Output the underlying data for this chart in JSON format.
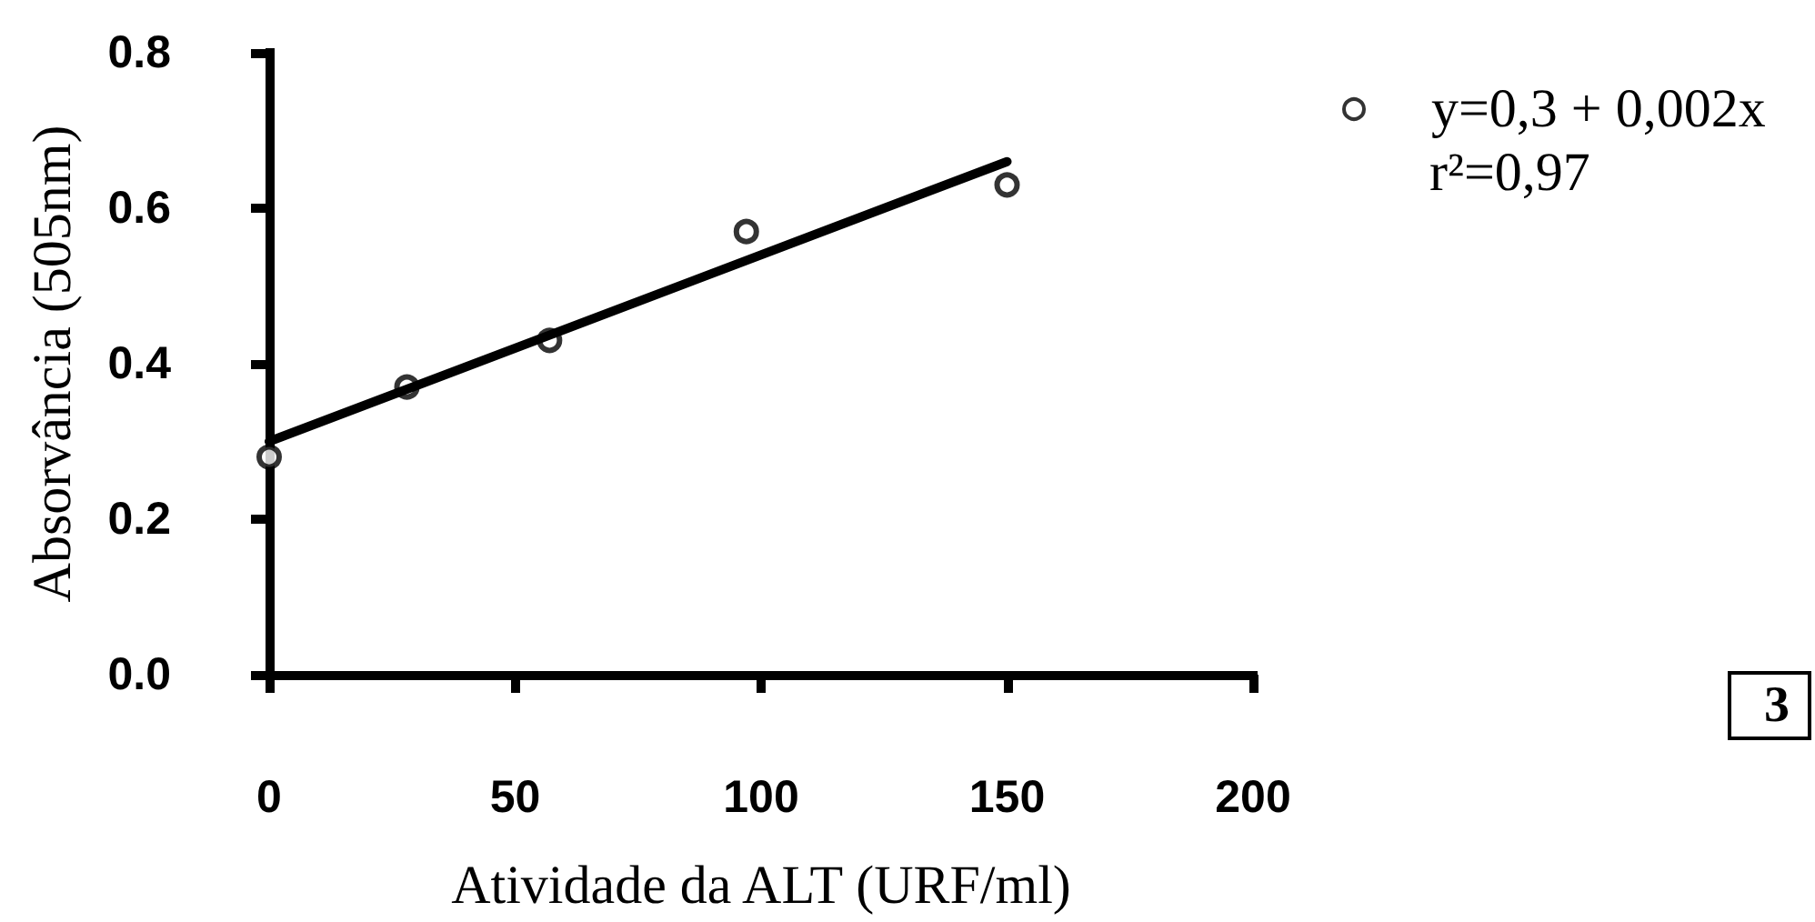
{
  "chart_data": {
    "type": "scatter",
    "xlabel": "Atividade da ALT (URF/ml)",
    "ylabel": "Absorvância (505nm)",
    "xlim": [
      0,
      200
    ],
    "xticks": [
      0,
      50,
      100,
      150,
      200
    ],
    "ylim": [
      0,
      0.8
    ],
    "yticks": [
      {
        "value": 0,
        "label": "0.0"
      },
      0.2,
      0.4,
      0.6,
      0.8
    ],
    "series": [
      {
        "name": "y=0,3 + 0,002x",
        "color": "#000000",
        "marker": "circle",
        "x": [
          0,
          28,
          57,
          97,
          150
        ],
        "values": [
          0.28,
          0.37,
          0.43,
          0.57,
          0.63
        ]
      },
      {
        "type": "line",
        "color": "#000000",
        "marker": "none",
        "line_style": "solid",
        "x": [
          0,
          150
        ],
        "values": [
          0.3,
          0.66
        ]
      }
    ],
    "annotations": [
      "r²=0,97",
      "3"
    ],
    "grid": false,
    "legend": "top right"
  }
}
